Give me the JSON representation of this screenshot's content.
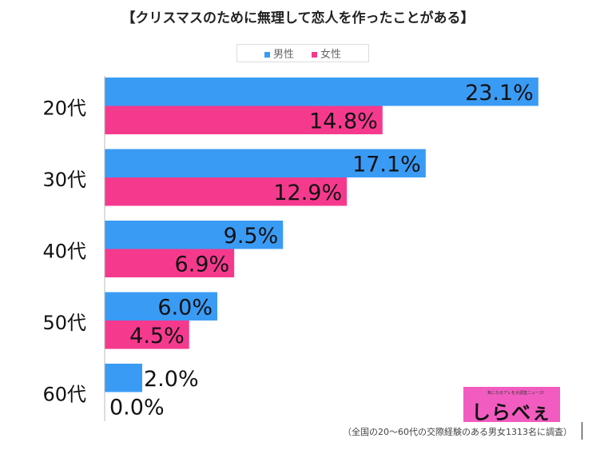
{
  "chart_data": {
    "type": "bar",
    "orientation": "horizontal",
    "title": "【クリスマスのために無理して恋人を作ったことがある】",
    "categories": [
      "20代",
      "30代",
      "40代",
      "50代",
      "60代"
    ],
    "series": [
      {
        "name": "男性",
        "color": "#3a9bf5",
        "values": [
          23.1,
          17.1,
          9.5,
          6.0,
          2.0
        ]
      },
      {
        "name": "女性",
        "color": "#f53a8e",
        "values": [
          14.8,
          12.9,
          6.9,
          4.5,
          0.0
        ]
      }
    ],
    "value_suffix": "%",
    "legend": "top",
    "grid": false
  },
  "logo": {
    "name": "しらべぇ",
    "tagline": "気になるアレを大調査ニュース!"
  },
  "footnote": "（全国の20〜60代の交際経験のある男女1313名に調査）"
}
